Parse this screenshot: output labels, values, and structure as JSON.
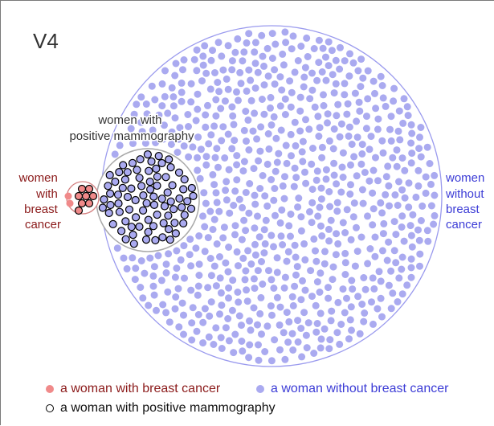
{
  "title": "V4",
  "labels": {
    "positive_mammography": [
      "women with",
      "positive mammography"
    ],
    "with_cancer": [
      "women",
      "with",
      "breast",
      "cancer"
    ],
    "without_cancer": [
      "women",
      "without",
      "breast",
      "cancer"
    ]
  },
  "legend": {
    "with_cancer": "a woman with breast cancer",
    "without_cancer": "a woman without breast cancer",
    "positive_mammography": "a woman with positive mammography"
  },
  "colors": {
    "cancer_dot": "#f08a8a",
    "cancer_text": "#8b1a1a",
    "no_cancer_dot": "#aaaaf0",
    "no_cancer_text": "#3c3cd6",
    "circle_big": "#9a9aee",
    "circle_pos": "#a9a9a9",
    "circle_cancer": "#d48080",
    "outline": "#000000"
  },
  "chart_data": {
    "type": "diagram",
    "groups": [
      {
        "name": "women with breast cancer",
        "count": 10,
        "positive_mammography": 8
      },
      {
        "name": "women without breast cancer",
        "count": 990,
        "positive_mammography": 95
      }
    ]
  }
}
